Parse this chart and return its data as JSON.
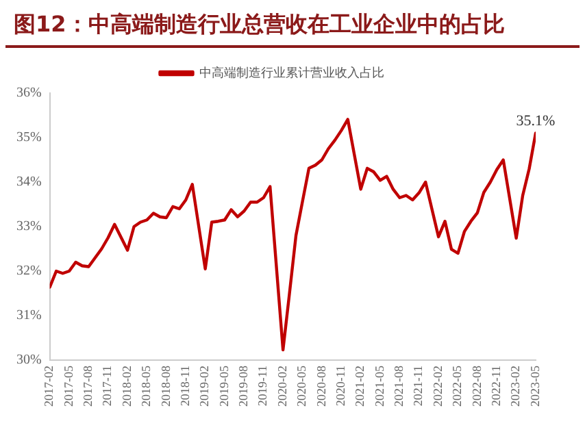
{
  "chart_data": {
    "type": "line",
    "title": "图12：中高端制造行业总营收在工业企业中的占比",
    "x": [
      "2017-02",
      "2017-03",
      "2017-04",
      "2017-05",
      "2017-06",
      "2017-07",
      "2017-08",
      "2017-09",
      "2017-10",
      "2017-11",
      "2017-12",
      "2018-02",
      "2018-03",
      "2018-04",
      "2018-05",
      "2018-06",
      "2018-07",
      "2018-08",
      "2018-09",
      "2018-10",
      "2018-11",
      "2018-12",
      "2019-02",
      "2019-03",
      "2019-04",
      "2019-05",
      "2019-06",
      "2019-07",
      "2019-08",
      "2019-09",
      "2019-10",
      "2019-11",
      "2019-12",
      "2020-02",
      "2020-03",
      "2020-04",
      "2020-05",
      "2020-06",
      "2020-07",
      "2020-08",
      "2020-09",
      "2020-10",
      "2020-11",
      "2020-12",
      "2021-02",
      "2021-03",
      "2021-04",
      "2021-05",
      "2021-06",
      "2021-07",
      "2021-08",
      "2021-09",
      "2021-10",
      "2021-11",
      "2021-12",
      "2022-02",
      "2022-03",
      "2022-04",
      "2022-05",
      "2022-06",
      "2022-07",
      "2022-08",
      "2022-09",
      "2022-10",
      "2022-11",
      "2022-12",
      "2023-02",
      "2023-03",
      "2023-04",
      "2023-05"
    ],
    "series": [
      {
        "name": "中高端制造行业累计营业收入占比",
        "color": "#c00000",
        "values": [
          31.64,
          32.0,
          31.95,
          32.0,
          32.2,
          32.12,
          32.1,
          32.3,
          32.5,
          32.75,
          33.05,
          32.47,
          33.0,
          33.1,
          33.15,
          33.3,
          33.22,
          33.2,
          33.45,
          33.4,
          33.6,
          33.95,
          32.05,
          33.1,
          33.12,
          33.15,
          33.38,
          33.22,
          33.35,
          33.55,
          33.55,
          33.65,
          33.9,
          30.23,
          31.5,
          32.8,
          33.56,
          34.31,
          34.38,
          34.5,
          34.75,
          34.94,
          35.16,
          35.41,
          33.84,
          34.31,
          34.23,
          34.04,
          34.13,
          33.84,
          33.65,
          33.7,
          33.6,
          33.76,
          34.0,
          32.77,
          33.12,
          32.49,
          32.4,
          32.89,
          33.12,
          33.31,
          33.77,
          34.0,
          34.28,
          34.5,
          32.74,
          33.7,
          34.3,
          35.1
        ]
      }
    ],
    "xlim": [
      "2017-02",
      "2023-05"
    ],
    "xticks": [
      "2017-02",
      "2017-05",
      "2017-08",
      "2017-11",
      "2018-02",
      "2018-05",
      "2018-08",
      "2018-11",
      "2019-02",
      "2019-05",
      "2019-08",
      "2019-11",
      "2020-02",
      "2020-05",
      "2020-08",
      "2020-11",
      "2021-02",
      "2021-05",
      "2021-08",
      "2021-11",
      "2022-02",
      "2022-05",
      "2022-08",
      "2022-11",
      "2023-02",
      "2023-05"
    ],
    "ylim": [
      30,
      36
    ],
    "yticks": [
      {
        "value": 30,
        "label": "30%"
      },
      {
        "value": 31,
        "label": "31%"
      },
      {
        "value": 32,
        "label": "32%"
      },
      {
        "value": 33,
        "label": "33%"
      },
      {
        "value": 34,
        "label": "34%"
      },
      {
        "value": 35,
        "label": "35%"
      },
      {
        "value": 36,
        "label": "36%"
      }
    ],
    "annotations": [
      {
        "text": "35.1%",
        "x": "2023-05",
        "y": 35.1
      }
    ],
    "legend": "top",
    "grid": false,
    "marker": "none",
    "line_style": "solid"
  }
}
